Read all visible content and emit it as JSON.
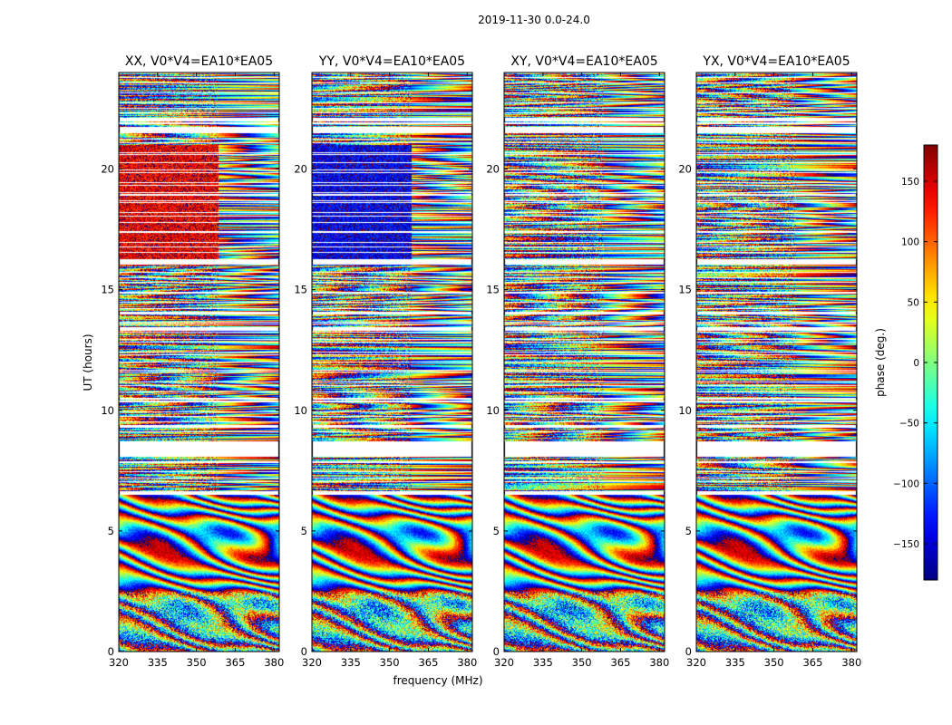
{
  "suptitle": "2019-11-30 0.0-24.0",
  "xlabel": "frequency (MHz)",
  "ylabel": "UT (hours)",
  "colorbar": {
    "label": "phase (deg.)",
    "range": [
      -180,
      180
    ],
    "ticks": [
      150,
      100,
      50,
      0,
      -50,
      -100,
      -150
    ],
    "tick_labels": [
      "150",
      "100",
      "50",
      "0",
      "−50",
      "−100",
      "−150"
    ],
    "colormap": "jet"
  },
  "chart_data": [
    {
      "type": "heatmap",
      "title": "XX, V0*V4=EA10*EA05",
      "xlim": [
        320,
        382
      ],
      "ylim": [
        0,
        24
      ],
      "x_ticks": [
        320,
        335,
        350,
        365,
        380
      ],
      "y_ticks": [
        0,
        5,
        10,
        15,
        20
      ],
      "value_quantity": "phase (deg.)",
      "value_range": [
        -180,
        180
      ],
      "flagged_ut_hours": [
        [
          6.5,
          6.65
        ],
        [
          8.1,
          8.75
        ],
        [
          9.3,
          9.4
        ],
        [
          10.45,
          10.55
        ],
        [
          13.3,
          13.45
        ],
        [
          14.0,
          14.1
        ],
        [
          16.05,
          16.3
        ],
        [
          18.9,
          19.0
        ],
        [
          21.5,
          21.75
        ],
        [
          22.0,
          22.15
        ]
      ]
    },
    {
      "type": "heatmap",
      "title": "YY, V0*V4=EA10*EA05",
      "xlim": [
        320,
        382
      ],
      "ylim": [
        0,
        24
      ],
      "x_ticks": [
        320,
        335,
        350,
        365,
        380
      ],
      "y_ticks": [
        0,
        5,
        10,
        15,
        20
      ],
      "value_quantity": "phase (deg.)",
      "value_range": [
        -180,
        180
      ],
      "flagged_ut_hours": [
        [
          6.5,
          6.65
        ],
        [
          8.1,
          8.75
        ],
        [
          9.3,
          9.4
        ],
        [
          10.45,
          10.55
        ],
        [
          13.3,
          13.45
        ],
        [
          14.0,
          14.1
        ],
        [
          16.05,
          16.3
        ],
        [
          18.9,
          19.0
        ],
        [
          21.5,
          21.75
        ],
        [
          22.0,
          22.15
        ]
      ]
    },
    {
      "type": "heatmap",
      "title": "XY, V0*V4=EA10*EA05",
      "xlim": [
        320,
        382
      ],
      "ylim": [
        0,
        24
      ],
      "x_ticks": [
        320,
        335,
        350,
        365,
        380
      ],
      "y_ticks": [
        0,
        5,
        10,
        15,
        20
      ],
      "value_quantity": "phase (deg.)",
      "value_range": [
        -180,
        180
      ],
      "flagged_ut_hours": [
        [
          6.5,
          6.65
        ],
        [
          8.1,
          8.75
        ],
        [
          9.3,
          9.4
        ],
        [
          10.45,
          10.55
        ],
        [
          13.3,
          13.45
        ],
        [
          14.0,
          14.1
        ],
        [
          16.05,
          16.3
        ],
        [
          18.9,
          19.0
        ],
        [
          21.5,
          21.75
        ],
        [
          22.0,
          22.15
        ]
      ]
    },
    {
      "type": "heatmap",
      "title": "YX, V0*V4=EA10*EA05",
      "xlim": [
        320,
        382
      ],
      "ylim": [
        0,
        24
      ],
      "x_ticks": [
        320,
        335,
        350,
        365,
        380
      ],
      "y_ticks": [
        0,
        5,
        10,
        15,
        20
      ],
      "value_quantity": "phase (deg.)",
      "value_range": [
        -180,
        180
      ],
      "flagged_ut_hours": [
        [
          6.5,
          6.65
        ],
        [
          8.1,
          8.75
        ],
        [
          9.3,
          9.4
        ],
        [
          10.45,
          10.55
        ],
        [
          13.3,
          13.45
        ],
        [
          14.0,
          14.1
        ],
        [
          16.05,
          16.3
        ],
        [
          18.9,
          19.0
        ],
        [
          21.5,
          21.75
        ],
        [
          22.0,
          22.15
        ]
      ]
    }
  ]
}
